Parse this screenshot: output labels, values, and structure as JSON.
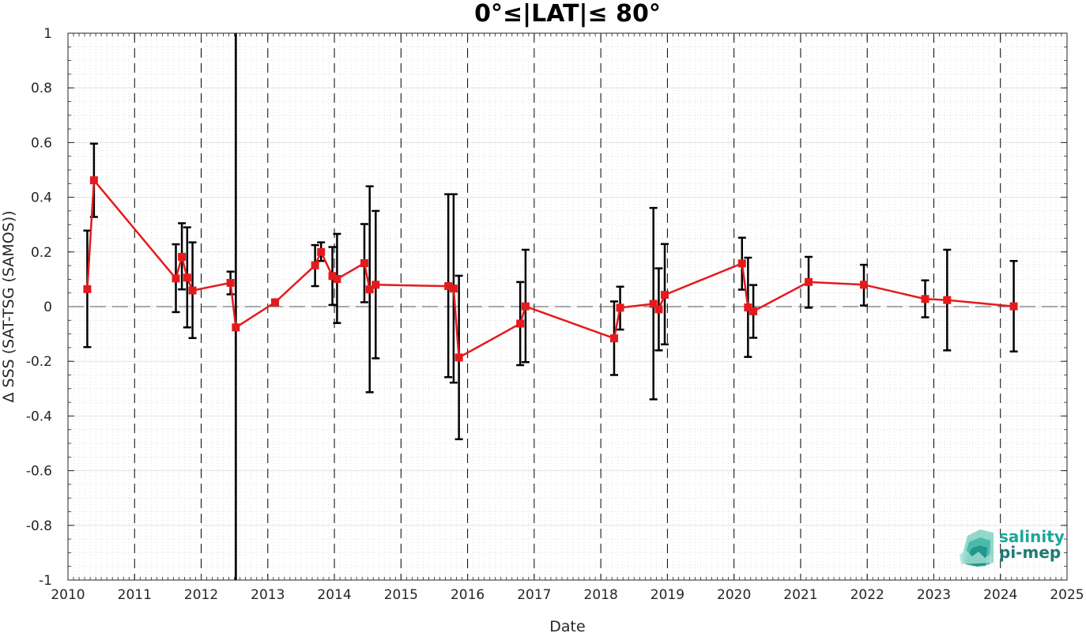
{
  "chart_data": {
    "type": "line",
    "title": "0°≤|LAT|≤ 80°",
    "xlabel": "Date",
    "ylabel": "Δ SSS (SAT-TSG (SAMOS))",
    "xlim": [
      2010,
      2025
    ],
    "ylim": [
      -1,
      1
    ],
    "x_ticks": [
      "2010",
      "2011",
      "2012",
      "2013",
      "2014",
      "2015",
      "2016",
      "2017",
      "2018",
      "2019",
      "2020",
      "2021",
      "2022",
      "2023",
      "2024",
      "2025"
    ],
    "y_ticks": [
      "-1",
      "-0.8",
      "-0.6",
      "-0.4",
      "-0.2",
      "0",
      "0.2",
      "0.4",
      "0.6",
      "0.8",
      "1"
    ],
    "grid": true,
    "reference_line_y": 0,
    "year_dividers": [
      2011,
      2012,
      2013,
      2014,
      2015,
      2016,
      2017,
      2018,
      2019,
      2020,
      2021,
      2022,
      2023,
      2024,
      2025
    ],
    "highlight_line_x": 2012.52,
    "series": [
      {
        "color": "#e41a1c",
        "errorbar_color": "#000000",
        "points": [
          {
            "x": 2010.29,
            "y": 0.064,
            "low": -0.148,
            "high": 0.278
          },
          {
            "x": 2010.39,
            "y": 0.462,
            "low": 0.328,
            "high": 0.596
          },
          {
            "x": 2011.62,
            "y": 0.103,
            "low": -0.02,
            "high": 0.228
          },
          {
            "x": 2011.71,
            "y": 0.182,
            "low": 0.063,
            "high": 0.305
          },
          {
            "x": 2011.79,
            "y": 0.106,
            "low": -0.076,
            "high": 0.29
          },
          {
            "x": 2011.87,
            "y": 0.059,
            "low": -0.115,
            "high": 0.235
          },
          {
            "x": 2012.44,
            "y": 0.087,
            "low": 0.045,
            "high": 0.128
          },
          {
            "x": 2012.52,
            "y": -0.076,
            "low": -1.0,
            "high": 1.0
          },
          {
            "x": 2013.11,
            "y": 0.016,
            "low": 0.008,
            "high": 0.025
          },
          {
            "x": 2013.71,
            "y": 0.151,
            "low": 0.075,
            "high": 0.225
          },
          {
            "x": 2013.8,
            "y": 0.2,
            "low": 0.167,
            "high": 0.235
          },
          {
            "x": 2013.97,
            "y": 0.112,
            "low": 0.006,
            "high": 0.218
          },
          {
            "x": 2014.04,
            "y": 0.101,
            "low": -0.06,
            "high": 0.266
          },
          {
            "x": 2014.45,
            "y": 0.159,
            "low": 0.016,
            "high": 0.302
          },
          {
            "x": 2014.53,
            "y": 0.063,
            "low": -0.313,
            "high": 0.44
          },
          {
            "x": 2014.62,
            "y": 0.08,
            "low": -0.189,
            "high": 0.35
          },
          {
            "x": 2015.71,
            "y": 0.075,
            "low": -0.258,
            "high": 0.411
          },
          {
            "x": 2015.79,
            "y": 0.066,
            "low": -0.278,
            "high": 0.411
          },
          {
            "x": 2015.87,
            "y": -0.186,
            "low": -0.485,
            "high": 0.113
          },
          {
            "x": 2016.79,
            "y": -0.062,
            "low": -0.214,
            "high": 0.09
          },
          {
            "x": 2016.87,
            "y": 0.001,
            "low": -0.203,
            "high": 0.208
          },
          {
            "x": 2018.2,
            "y": -0.116,
            "low": -0.25,
            "high": 0.019
          },
          {
            "x": 2018.29,
            "y": -0.004,
            "low": -0.084,
            "high": 0.073
          },
          {
            "x": 2018.79,
            "y": 0.01,
            "low": -0.339,
            "high": 0.361
          },
          {
            "x": 2018.87,
            "y": -0.01,
            "low": -0.16,
            "high": 0.14
          },
          {
            "x": 2018.96,
            "y": 0.043,
            "low": -0.138,
            "high": 0.229
          },
          {
            "x": 2020.12,
            "y": 0.158,
            "low": 0.062,
            "high": 0.252
          },
          {
            "x": 2020.21,
            "y": -0.003,
            "low": -0.184,
            "high": 0.179
          },
          {
            "x": 2020.29,
            "y": -0.017,
            "low": -0.114,
            "high": 0.079
          },
          {
            "x": 2021.12,
            "y": 0.09,
            "low": -0.004,
            "high": 0.182
          },
          {
            "x": 2021.95,
            "y": 0.08,
            "low": 0.004,
            "high": 0.153
          },
          {
            "x": 2022.87,
            "y": 0.028,
            "low": -0.039,
            "high": 0.096
          },
          {
            "x": 2023.2,
            "y": 0.024,
            "low": -0.16,
            "high": 0.208
          },
          {
            "x": 2024.2,
            "y": 0.001,
            "low": -0.164,
            "high": 0.167
          }
        ]
      }
    ]
  },
  "logo": {
    "line1": "salinity",
    "line2": "pi-mep",
    "color1": "#1aa89a",
    "color2": "#1f7a73"
  }
}
